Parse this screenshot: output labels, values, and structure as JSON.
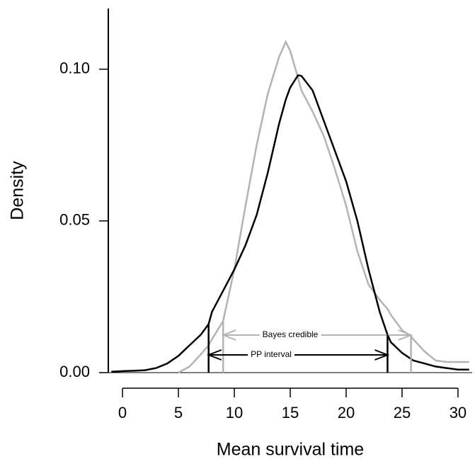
{
  "chart_data": {
    "type": "line",
    "xlabel": "Mean survival time",
    "ylabel": "Density",
    "x": [
      -1,
      0,
      1,
      2,
      3,
      4,
      5,
      6,
      7,
      7.7,
      8,
      9,
      10,
      11,
      12,
      13,
      14,
      14.6,
      15,
      15.7,
      16,
      17,
      18,
      19,
      20,
      21,
      22,
      23,
      23.7,
      24,
      25,
      25.8,
      26,
      27,
      28,
      29,
      30,
      31
    ],
    "series": [
      {
        "color": "#000000",
        "values": [
          0.0003,
          0.0005,
          0.0006,
          0.0008,
          0.0015,
          0.003,
          0.0055,
          0.009,
          0.0125,
          0.016,
          0.02,
          0.027,
          0.034,
          0.042,
          0.052,
          0.066,
          0.082,
          0.09,
          0.094,
          0.098,
          0.0978,
          0.093,
          0.083,
          0.073,
          0.063,
          0.05,
          0.034,
          0.02,
          0.0125,
          0.01,
          0.0065,
          0.0045,
          0.004,
          0.003,
          0.002,
          0.0015,
          0.001,
          0.001
        ]
      },
      {
        "color": "#b3b3b3",
        "values": [
          null,
          null,
          null,
          null,
          null,
          null,
          0,
          0.002,
          0.006,
          0.009,
          0.011,
          0.017,
          0.034,
          0.055,
          0.075,
          0.092,
          0.104,
          0.109,
          0.106,
          0.097,
          0.093,
          0.086,
          0.078,
          0.067,
          0.055,
          0.04,
          0.029,
          0.024,
          0.021,
          0.019,
          0.014,
          0.012,
          0.011,
          0.007,
          0.004,
          0.0035,
          0.0035,
          0.0035
        ]
      }
    ],
    "intervals": [
      {
        "name": "Bayes credible",
        "lower": 9.0,
        "upper": 25.8,
        "color": "#b3b3b3"
      },
      {
        "name": "PP interval",
        "lower": 7.7,
        "upper": 23.7,
        "color": "#000000"
      }
    ],
    "xlim": [
      -1.27,
      31.27
    ],
    "ylim": [
      0,
      0.12
    ],
    "xticks": [
      0,
      5,
      10,
      15,
      20,
      25,
      30
    ],
    "yticks": [
      {
        "value": 0,
        "label": "0.00"
      },
      {
        "value": 0.05,
        "label": "0.05"
      },
      {
        "value": 0.1,
        "label": "0.10"
      }
    ]
  }
}
